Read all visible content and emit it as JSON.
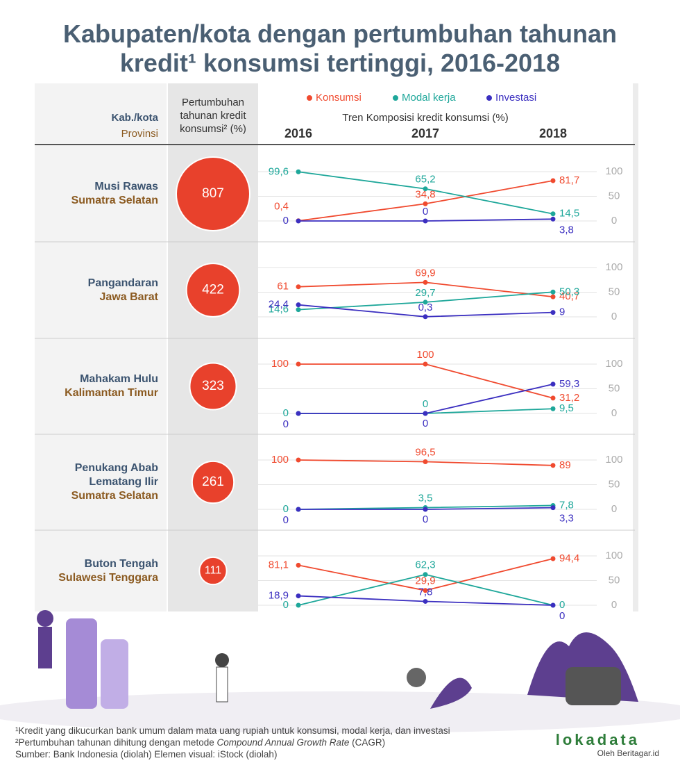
{
  "title": "Kabupaten/kota dengan pertumbuhan tahunan kredit¹ konsumsi tertinggi, 2016-2018",
  "header": {
    "region": "Kab./kota",
    "province": "Provinsi",
    "growth": "Pertumbuhan tahunan kredit konsumsi² (%)",
    "trend": "Tren Komposisi kredit konsumsi (%)",
    "years": [
      "2016",
      "2017",
      "2018"
    ]
  },
  "legend": [
    {
      "name": "Konsumsi",
      "color": "#f04a2f"
    },
    {
      "name": "Modal kerja",
      "color": "#1ea79a"
    },
    {
      "name": "Investasi",
      "color": "#3b2fc0"
    }
  ],
  "chart_data": [
    {
      "type": "line",
      "region": "Musi Rawas",
      "province": "Sumatra Selatan",
      "growth": 807,
      "ylim": [
        0,
        100
      ],
      "yticks": [
        0,
        50,
        100
      ],
      "series": [
        {
          "values": [
            0.4,
            34.8,
            81.7
          ],
          "value_labels": [
            "0,4",
            "34,8",
            "81,7"
          ]
        },
        {
          "values": [
            99.6,
            65.2,
            14.5
          ],
          "value_labels": [
            "99,6",
            "65,2",
            "14,5"
          ]
        },
        {
          "values": [
            0,
            0,
            3.8
          ],
          "value_labels": [
            "0",
            "0",
            "3,8"
          ]
        }
      ]
    },
    {
      "type": "line",
      "region": "Pangandaran",
      "province": "Jawa Barat",
      "growth": 422,
      "ylim": [
        0,
        100
      ],
      "yticks": [
        0,
        50,
        100
      ],
      "series": [
        {
          "values": [
            61,
            69.9,
            40.7
          ],
          "value_labels": [
            "61",
            "69,9",
            "40,7"
          ]
        },
        {
          "values": [
            14.6,
            29.7,
            50.3
          ],
          "value_labels": [
            "14,6",
            "29,7",
            "50,3"
          ]
        },
        {
          "values": [
            24.4,
            0.3,
            9
          ],
          "value_labels": [
            "24,4",
            "0,3",
            "9"
          ]
        }
      ]
    },
    {
      "type": "line",
      "region": "Mahakam Hulu",
      "province": "Kalimantan Timur",
      "growth": 323,
      "ylim": [
        0,
        100
      ],
      "yticks": [
        0,
        50,
        100
      ],
      "series": [
        {
          "values": [
            100,
            100,
            31.2
          ],
          "value_labels": [
            "100",
            "100",
            "31,2"
          ]
        },
        {
          "values": [
            0,
            0,
            9.5
          ],
          "value_labels": [
            "0",
            "0",
            "9,5"
          ]
        },
        {
          "values": [
            0,
            0,
            59.3
          ],
          "value_labels": [
            "0",
            "0",
            "59,3"
          ]
        }
      ]
    },
    {
      "type": "line",
      "region": "Penukang Abab Lematang Ilir",
      "province": "Sumatra Selatan",
      "growth": 261,
      "ylim": [
        0,
        100
      ],
      "yticks": [
        0,
        50,
        100
      ],
      "series": [
        {
          "values": [
            100,
            96.5,
            89
          ],
          "value_labels": [
            "100",
            "96,5",
            "89"
          ]
        },
        {
          "values": [
            0,
            3.5,
            7.8
          ],
          "value_labels": [
            "0",
            "3,5",
            "7,8"
          ]
        },
        {
          "values": [
            0,
            0,
            3.3
          ],
          "value_labels": [
            "0",
            "0",
            "3,3"
          ]
        }
      ]
    },
    {
      "type": "line",
      "region": "Buton Tengah",
      "province": "Sulawesi Tenggara",
      "growth": 111,
      "ylim": [
        0,
        100
      ],
      "yticks": [
        0,
        50,
        100
      ],
      "series": [
        {
          "values": [
            81.1,
            29.9,
            94.4
          ],
          "value_labels": [
            "81,1",
            "29,9",
            "94,4"
          ]
        },
        {
          "values": [
            0,
            62.3,
            0
          ],
          "value_labels": [
            "0",
            "62,3",
            "0"
          ]
        },
        {
          "values": [
            18.9,
            7.8,
            0
          ],
          "value_labels": [
            "18,9",
            "7,8",
            "0"
          ]
        }
      ]
    }
  ],
  "footnotes": {
    "note1": "¹Kredit yang dikucurkan bank umum dalam mata uang rupiah untuk konsumsi, modal kerja, dan investasi",
    "note2": [
      "²Pertumbuhan tahunan dihitung dengan metode ",
      "Compound Annual Growth Rate",
      " (CAGR)"
    ],
    "source": "Sumber: Bank Indonesia (diolah) Elemen visual: iStock (diolah)"
  },
  "logo": {
    "name": "lokadata",
    "by": "Oleh Beritagar.id"
  }
}
